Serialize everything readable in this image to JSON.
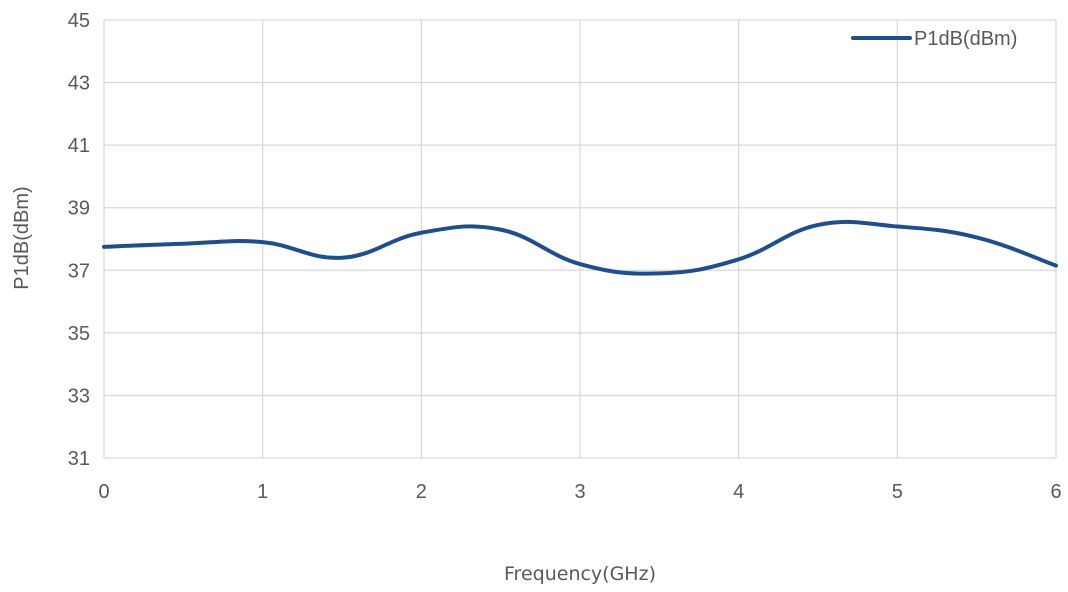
{
  "chart_data": {
    "type": "line",
    "title": "",
    "xlabel": "Frequency(GHz)",
    "ylabel": "P1dB(dBm)",
    "xlim": [
      0,
      6
    ],
    "ylim": [
      31,
      45
    ],
    "xticks": [
      "0",
      "1",
      "2",
      "3",
      "4",
      "5",
      "6"
    ],
    "yticks": [
      "31",
      "33",
      "35",
      "37",
      "39",
      "41",
      "43",
      "45"
    ],
    "grid": true,
    "legend_position": "top-right",
    "series": [
      {
        "name": "P1dB(dBm)",
        "color": "#1f4e8c",
        "x": [
          0,
          0.5,
          1,
          1.5,
          2,
          2.5,
          3,
          3.5,
          4,
          4.5,
          5,
          5.5,
          6
        ],
        "y": [
          37.75,
          37.85,
          37.9,
          37.4,
          38.2,
          38.3,
          37.2,
          36.9,
          37.35,
          38.45,
          38.4,
          38.05,
          37.15
        ]
      }
    ]
  }
}
